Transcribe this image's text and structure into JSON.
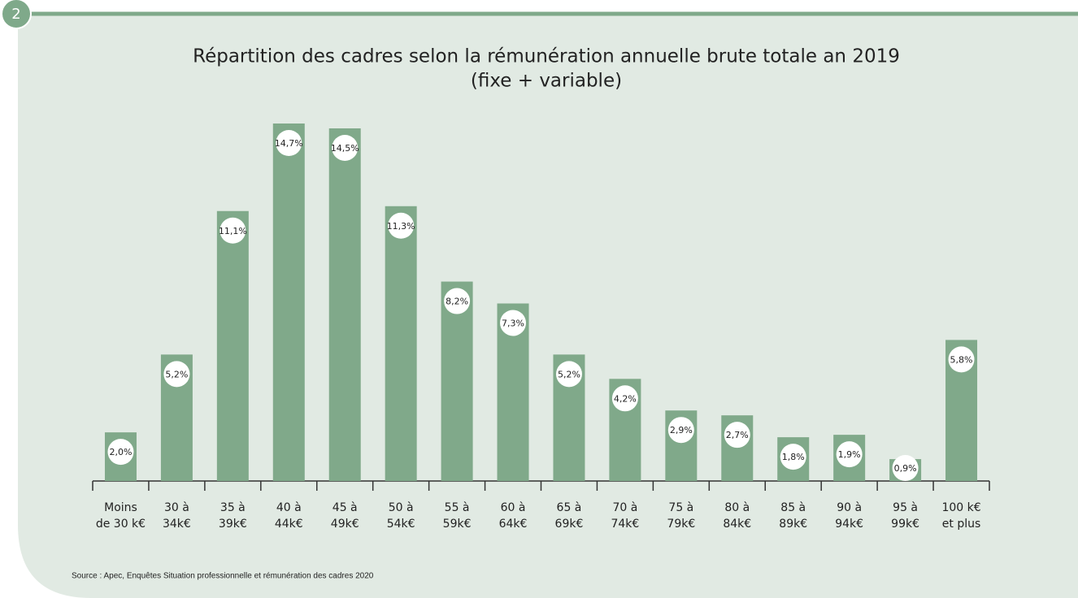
{
  "badge": "2",
  "source": "Source : Apec, Enquêtes Situation professionnelle et rémunération des cadres 2020",
  "chart_data": {
    "type": "bar",
    "title": [
      "Répartition des cadres selon la rémunération annuelle brute totale an 2019",
      "(fixe + variable)"
    ],
    "categories": [
      [
        "Moins",
        "de 30 k€"
      ],
      [
        "30 à",
        "34k€"
      ],
      [
        "35 à",
        "39k€"
      ],
      [
        "40 à",
        "44k€"
      ],
      [
        "45 à",
        "49k€"
      ],
      [
        "50 à",
        "54k€"
      ],
      [
        "55 à",
        "59k€"
      ],
      [
        "60 à",
        "64k€"
      ],
      [
        "65 à",
        "69k€"
      ],
      [
        "70 à",
        "74k€"
      ],
      [
        "75 à",
        "79k€"
      ],
      [
        "80 à",
        "84k€"
      ],
      [
        "85 à",
        "89k€"
      ],
      [
        "90 à",
        "94k€"
      ],
      [
        "95 à",
        "99k€"
      ],
      [
        "100 k€",
        "et plus"
      ]
    ],
    "values": [
      2.0,
      5.2,
      11.1,
      14.7,
      14.5,
      11.3,
      8.2,
      7.3,
      5.2,
      4.2,
      2.9,
      2.7,
      1.8,
      1.9,
      0.9,
      5.8
    ],
    "value_labels": [
      "2,0%",
      "5,2%",
      "11,1%",
      "14,7%",
      "14,5%",
      "11,3%",
      "8,2%",
      "7,3%",
      "5,2%",
      "4,2%",
      "2,9%",
      "2,7%",
      "1,8%",
      "1,9%",
      "0,9%",
      "5,8%"
    ],
    "color": "#80a98a"
  }
}
